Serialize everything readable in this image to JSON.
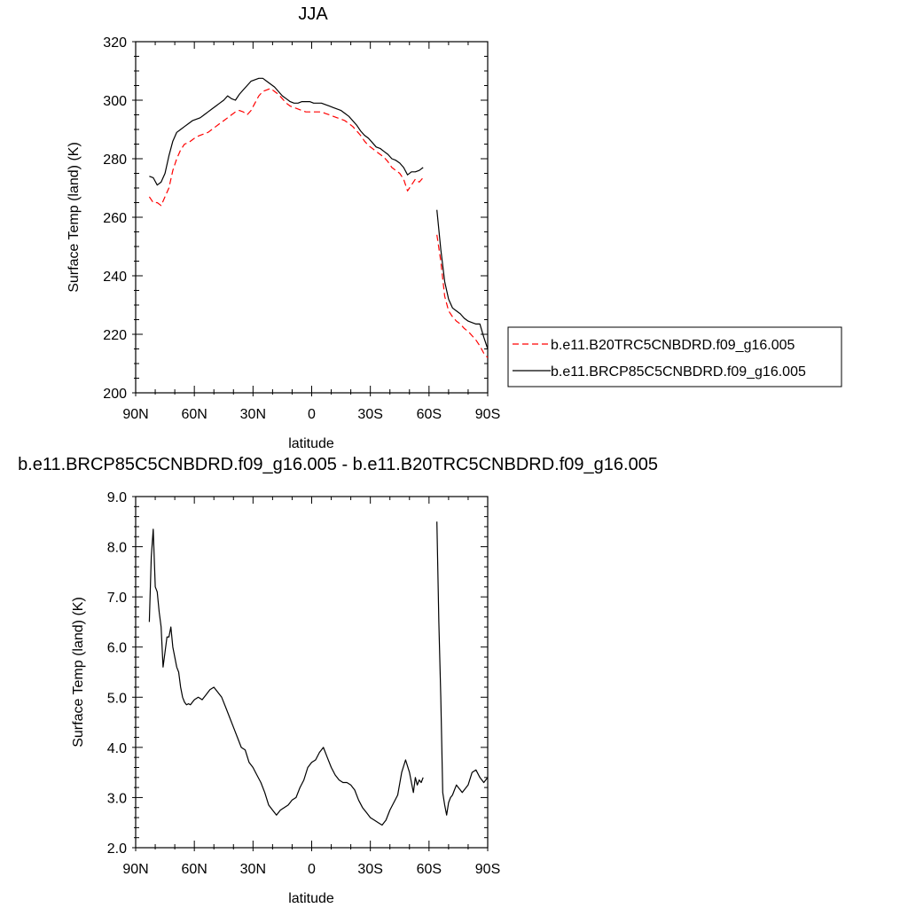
{
  "chart_data": [
    {
      "type": "line",
      "title": "JJA",
      "xlabel": "latitude",
      "ylabel": "Surface Temp (land) (K)",
      "xlim": [
        90,
        -90
      ],
      "ylim": [
        200,
        320
      ],
      "x_ticks": [
        "90N",
        "60N",
        "30N",
        "0",
        "30S",
        "60S",
        "90S"
      ],
      "y_ticks": [
        "200",
        "220",
        "240",
        "260",
        "280",
        "300",
        "320"
      ],
      "legend_position": "right",
      "series": [
        {
          "name": "b.e11.B20TRC5CNBDRD.f09_g16.005",
          "color": "#ff0000",
          "dash": "dashed",
          "x": [
            83,
            81,
            79,
            77,
            75,
            73,
            71,
            69,
            67,
            65,
            63,
            61,
            59,
            57,
            55,
            53,
            51,
            49,
            47,
            45,
            43,
            41,
            39,
            37,
            35,
            33,
            31,
            29,
            27,
            25,
            23,
            21,
            19,
            17,
            15,
            13,
            11,
            9,
            7,
            5,
            3,
            1,
            -1,
            -3,
            -5,
            -7,
            -9,
            -11,
            -13,
            -15,
            -17,
            -19,
            -21,
            -23,
            -25,
            -27,
            -29,
            -31,
            -33,
            -35,
            -37,
            -39,
            -41,
            -43,
            -45,
            -47,
            -49,
            -51,
            -53,
            -55,
            -57,
            null,
            -64,
            -66,
            -68,
            -70,
            -72,
            -74,
            -76,
            -78,
            -80,
            -82,
            -84,
            -86,
            -88,
            -90
          ],
          "y": [
            267,
            265,
            265,
            264,
            267,
            270,
            276,
            280,
            283,
            285,
            285.5,
            286.5,
            287.5,
            288,
            288.5,
            289,
            290,
            291,
            292,
            293,
            294,
            295,
            296,
            296.5,
            296,
            295,
            296.5,
            299,
            301.5,
            303,
            303.5,
            304,
            303,
            302,
            300.5,
            299,
            298,
            297.5,
            297,
            296.5,
            296,
            296,
            296,
            296,
            296,
            295.5,
            295,
            294.5,
            294,
            293.5,
            293,
            292,
            291,
            289.5,
            288,
            286,
            284.5,
            283.5,
            282.5,
            281.5,
            280.5,
            279,
            277,
            276,
            275,
            273,
            269,
            271,
            273,
            272,
            273.5,
            null,
            254,
            245,
            233,
            228,
            226,
            224.5,
            223.5,
            222,
            221,
            219.5,
            218,
            216,
            213.5,
            212
          ]
        },
        {
          "name": "b.e11.BRCP85C5CNBDRD.f09_g16.005",
          "color": "#000000",
          "dash": "solid",
          "x": [
            83,
            81,
            79,
            77,
            75,
            73,
            71,
            69,
            67,
            65,
            63,
            61,
            59,
            57,
            55,
            53,
            51,
            49,
            47,
            45,
            43,
            41,
            39,
            37,
            35,
            33,
            31,
            29,
            27,
            25,
            23,
            21,
            19,
            17,
            15,
            13,
            11,
            9,
            7,
            5,
            3,
            1,
            -1,
            -3,
            -5,
            -7,
            -9,
            -11,
            -13,
            -15,
            -17,
            -19,
            -21,
            -23,
            -25,
            -27,
            -29,
            -31,
            -33,
            -35,
            -37,
            -39,
            -41,
            -43,
            -45,
            -47,
            -49,
            -51,
            -53,
            -55,
            -57,
            null,
            -64,
            -66,
            -68,
            -70,
            -72,
            -74,
            -76,
            -78,
            -80,
            -82,
            -84,
            -86,
            -88,
            -90
          ],
          "y": [
            274,
            273.5,
            271,
            272,
            275,
            281,
            286,
            289,
            290,
            291,
            292,
            293,
            293.5,
            294,
            295,
            296,
            297,
            298,
            299,
            300,
            301.5,
            300.5,
            300,
            302,
            303.5,
            305,
            306.5,
            307,
            307.5,
            307.5,
            306.5,
            305.5,
            304.5,
            303,
            301.5,
            300.5,
            299.5,
            299,
            299,
            299.5,
            299.5,
            299.5,
            299,
            299,
            299,
            298.5,
            298,
            297.5,
            297,
            296.5,
            295.5,
            294.5,
            293,
            291.5,
            289.5,
            288,
            287,
            285.5,
            284,
            283.5,
            282.5,
            281.5,
            280,
            279.5,
            278.5,
            277,
            274.5,
            275.5,
            275.5,
            276,
            277,
            null,
            262.5,
            249,
            238,
            232,
            229,
            228,
            227,
            225.5,
            224.5,
            224,
            223.5,
            223.5,
            219,
            215
          ]
        }
      ]
    },
    {
      "type": "line",
      "title": "b.e11.BRCP85C5CNBDRD.f09_g16.005 - b.e11.B20TRC5CNBDRD.f09_g16.005",
      "xlabel": "latitude",
      "ylabel": "Surface Temp (land) (K)",
      "xlim": [
        90,
        -90
      ],
      "ylim": [
        2.0,
        9.0
      ],
      "x_ticks": [
        "90N",
        "60N",
        "30N",
        "0",
        "30S",
        "60S",
        "90S"
      ],
      "y_ticks": [
        "2.0",
        "3.0",
        "4.0",
        "5.0",
        "6.0",
        "7.0",
        "8.0",
        "9.0"
      ],
      "series": [
        {
          "color": "#000000",
          "dash": "solid",
          "x": [
            83,
            82,
            81,
            80,
            79,
            78,
            77,
            76,
            75,
            74,
            73,
            72,
            71,
            70,
            69,
            68,
            67,
            66,
            65,
            64,
            63,
            62,
            61,
            60,
            58,
            56,
            54,
            52,
            50,
            48,
            46,
            44,
            42,
            40,
            38,
            36,
            34,
            32,
            30,
            28,
            26,
            24,
            22,
            20,
            18,
            16,
            14,
            12,
            10,
            8,
            6,
            4,
            2,
            0,
            -2,
            -4,
            -6,
            -8,
            -10,
            -12,
            -14,
            -16,
            -18,
            -20,
            -22,
            -24,
            -26,
            -28,
            -30,
            -32,
            -34,
            -36,
            -38,
            -40,
            -42,
            -44,
            -46,
            -48,
            -50,
            -52,
            -53,
            -54,
            -55,
            -56,
            -57,
            null,
            -64,
            -65,
            -66,
            -67,
            -68,
            -69,
            -70,
            -71,
            -72,
            -73,
            -74,
            -75,
            -76,
            -77,
            -78,
            -80,
            -82,
            -84,
            -86,
            -88,
            -90
          ],
          "y": [
            6.5,
            7.8,
            8.35,
            7.2,
            7.1,
            6.7,
            6.4,
            5.6,
            5.9,
            6.2,
            6.2,
            6.4,
            6.0,
            5.8,
            5.6,
            5.5,
            5.2,
            5.0,
            4.9,
            4.85,
            4.87,
            4.85,
            4.9,
            4.95,
            5.0,
            4.95,
            5.05,
            5.15,
            5.2,
            5.1,
            5.0,
            4.8,
            4.6,
            4.4,
            4.2,
            4.0,
            3.95,
            3.7,
            3.6,
            3.45,
            3.3,
            3.1,
            2.85,
            2.75,
            2.65,
            2.75,
            2.8,
            2.85,
            2.95,
            3.0,
            3.2,
            3.35,
            3.6,
            3.7,
            3.75,
            3.9,
            4.0,
            3.8,
            3.6,
            3.45,
            3.35,
            3.3,
            3.3,
            3.25,
            3.15,
            2.95,
            2.8,
            2.7,
            2.6,
            2.55,
            2.5,
            2.45,
            2.55,
            2.75,
            2.9,
            3.05,
            3.5,
            3.75,
            3.5,
            3.1,
            3.4,
            3.25,
            3.35,
            3.3,
            3.4,
            null,
            8.5,
            6.5,
            5.0,
            3.1,
            2.85,
            2.65,
            2.9,
            3.0,
            3.05,
            3.15,
            3.25,
            3.2,
            3.15,
            3.1,
            3.15,
            3.25,
            3.5,
            3.55,
            3.4,
            3.3,
            3.4
          ]
        }
      ]
    }
  ]
}
